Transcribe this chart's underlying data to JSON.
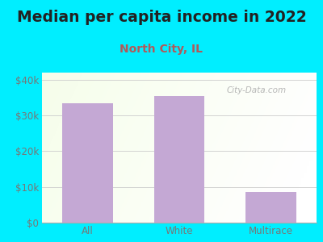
{
  "title": "Median per capita income in 2022",
  "subtitle": "North City, IL",
  "categories": [
    "All",
    "White",
    "Multirace"
  ],
  "values": [
    33500,
    35500,
    8500
  ],
  "bar_color": "#c4a8d4",
  "title_fontsize": 13.5,
  "subtitle_fontsize": 10,
  "subtitle_color": "#b05a5a",
  "tick_label_fontsize": 8.5,
  "bg_outer_color": "#00eeff",
  "ylim": [
    0,
    42000
  ],
  "yticks": [
    0,
    10000,
    20000,
    30000,
    40000
  ],
  "ytick_labels": [
    "$0",
    "$10k",
    "$20k",
    "$30k",
    "$40k"
  ],
  "watermark": "City-Data.com",
  "title_color": "#222222",
  "grid_color": "#cccccc",
  "tick_color": "#777777"
}
